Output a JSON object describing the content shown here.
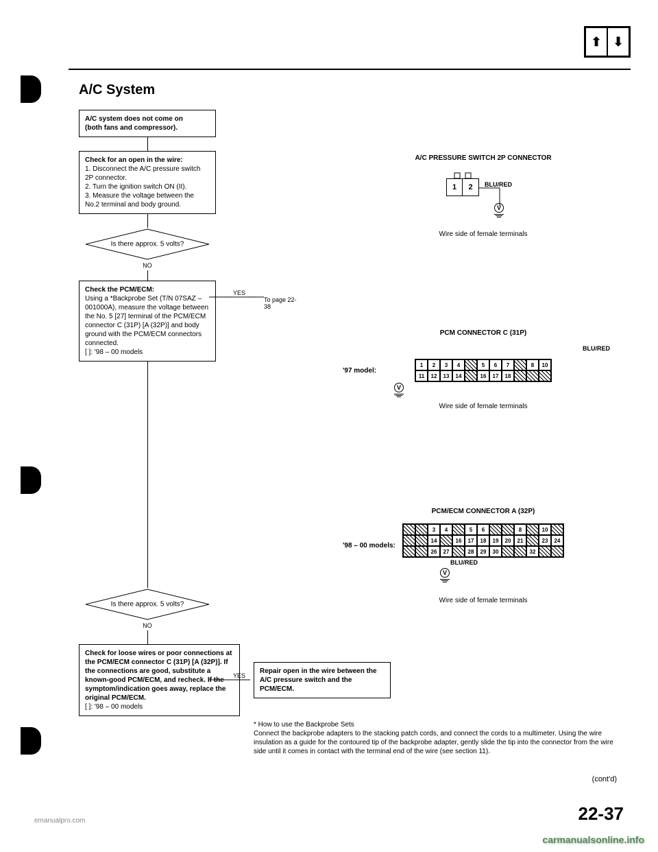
{
  "header": {
    "section_title": "A/C System"
  },
  "flowchart": {
    "box1": {
      "line1": "A/C system does not come on",
      "line2": "(both fans and compressor)."
    },
    "box2": {
      "title": "Check for an open in the wire:",
      "step1": "1. Disconnect the A/C pressure switch 2P connector.",
      "step2": "2. Turn the ignition switch ON (II).",
      "step3": "3. Measure the voltage between the No.2 terminal and body ground."
    },
    "decision1": {
      "text": "Is there approx. 5 volts?",
      "yes": "YES",
      "no": "NO",
      "yes_target": "To page 22-38"
    },
    "box3": {
      "title": "Check the PCM/ECM:",
      "body": "Using a *Backprobe Set (T/N 07SAZ – 001000A), measure the voltage between the No. 5 [27] terminal of the PCM/ECM connector C (31P) [A (32P)] and body ground with the PCM/ECM connectors connected.",
      "note": "[ ]: '98 – 00 models"
    },
    "decision2": {
      "text": "Is there approx. 5 volts?",
      "yes": "YES",
      "no": "NO"
    },
    "box4": {
      "text": "Repair open in the wire between the A/C pressure switch and the PCM/ECM."
    },
    "box5": {
      "text": "Check for loose wires or poor connections at the PCM/ECM connector C (31P) [A (32P)]. If the connections are good, substitute a known-good PCM/ECM, and recheck. If the symptom/indication goes away, replace the original PCM/ECM.",
      "note": "[ ]: '98 – 00 models"
    }
  },
  "connectors": {
    "c1": {
      "title": "A/C PRESSURE SWITCH 2P CONNECTOR",
      "pins": [
        "1",
        "2"
      ],
      "wire": "BLU/RED",
      "caption": "Wire side of female terminals"
    },
    "c2": {
      "title": "PCM CONNECTOR C (31P)",
      "model": "'97 model:",
      "wire": "BLU/RED",
      "row1": [
        "1",
        "2",
        "3",
        "4",
        "",
        "5",
        "6",
        "7",
        "",
        "8",
        "10"
      ],
      "row2": [
        "11",
        "12",
        "13",
        "14",
        "",
        "16",
        "17",
        "18",
        "",
        "",
        ""
      ],
      "caption": "Wire side of female terminals"
    },
    "c3": {
      "title": "PCM/ECM CONNECTOR A (32P)",
      "model": "'98 – 00 models:",
      "wire": "BLU/RED",
      "row1": [
        "",
        "",
        "3",
        "4",
        "",
        "5",
        "6",
        "",
        "",
        "8",
        "",
        "10",
        ""
      ],
      "row2": [
        "",
        "",
        "14",
        "",
        "16",
        "17",
        "18",
        "19",
        "20",
        "21",
        "",
        "23",
        "24"
      ],
      "row3": [
        "",
        "",
        "26",
        "27",
        "",
        "28",
        "29",
        "30",
        "",
        "",
        "32",
        "",
        ""
      ],
      "caption": "Wire side of female terminals"
    }
  },
  "footer": {
    "backprobe_title": "* How to use the Backprobe Sets",
    "backprobe_text": "Connect the backprobe adapters to the stacking patch cords, and connect the cords to a multimeter. Using the wire insulation as a guide for the contoured tip of the backprobe adapter, gently slide the tip into the connector from the wire side until it comes in contact with the terminal end of the wire (see section 11).",
    "contd": "(cont'd)",
    "page_num": "22-37",
    "watermark_left": "emanualpro.com",
    "watermark_right": "carmanualsonline.info"
  }
}
